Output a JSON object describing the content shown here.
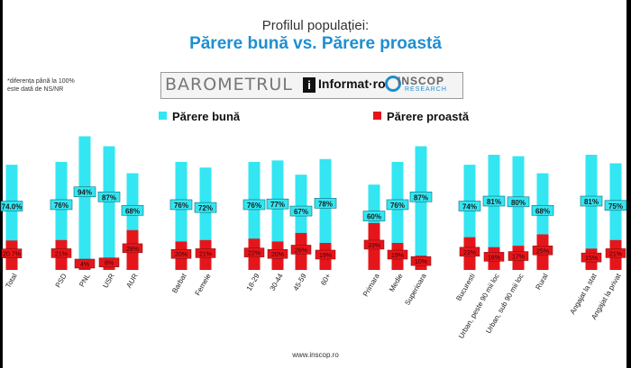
{
  "logo": {
    "barometrul": "BAROMETRUL",
    "informat_mark": "i",
    "informat": "Informat·ro",
    "inscop": "INSCOP",
    "research": "RESEARCH"
  },
  "footer": {
    "url": "www.inscop.ro"
  },
  "colors": {
    "good": "#33E6F2",
    "bad": "#E5161B",
    "title": "#1E8FD2"
  },
  "chart_data": {
    "type": "bar",
    "supertitle": "Profilul populației:",
    "title": "Părere bună vs. Părere proastă",
    "note_line1": "*diferența până la 100%",
    "note_line2": "este dată de NS/NR",
    "legend_position": "top",
    "grid": false,
    "ylim": [
      0,
      100
    ],
    "categories": [
      "Total",
      "PSD",
      "PNL",
      "USR",
      "AUR",
      "Barbat",
      "Femeie",
      "18-29",
      "30-44",
      "45-59",
      "60+",
      "Primara",
      "Medie",
      "Superioara",
      "Bucuresti",
      "Urban, peste 90 mii loc",
      "Urban, sub 90 mii loc",
      "Rural",
      "Angajat la stat",
      "Angajat la privat"
    ],
    "series": [
      {
        "name": "Părere bună",
        "values": [
          74.0,
          76,
          94,
          87,
          68,
          76,
          72,
          76,
          77,
          67,
          78,
          60,
          76,
          87,
          74,
          81,
          80,
          68,
          81,
          75
        ],
        "labels": [
          "74.0%",
          "76%",
          "94%",
          "87%",
          "68%",
          "76%",
          "72%",
          "76%",
          "77%",
          "67%",
          "78%",
          "60%",
          "76%",
          "87%",
          "74%",
          "81%",
          "80%",
          "68%",
          "81%",
          "75%"
        ]
      },
      {
        "name": "Părere proastă",
        "values": [
          20.7,
          21,
          4,
          8,
          28,
          20,
          21,
          22,
          20,
          26,
          19,
          33,
          19,
          10,
          23,
          16,
          17,
          25,
          15,
          21
        ],
        "labels": [
          "20.7%",
          "21%",
          "4%",
          "8%",
          "28%",
          "20%",
          "21%",
          "22%",
          "20%",
          "26%",
          "19%",
          "33%",
          "19%",
          "10%",
          "23%",
          "16%",
          "17%",
          "25%",
          "15%",
          "21%"
        ]
      }
    ]
  }
}
